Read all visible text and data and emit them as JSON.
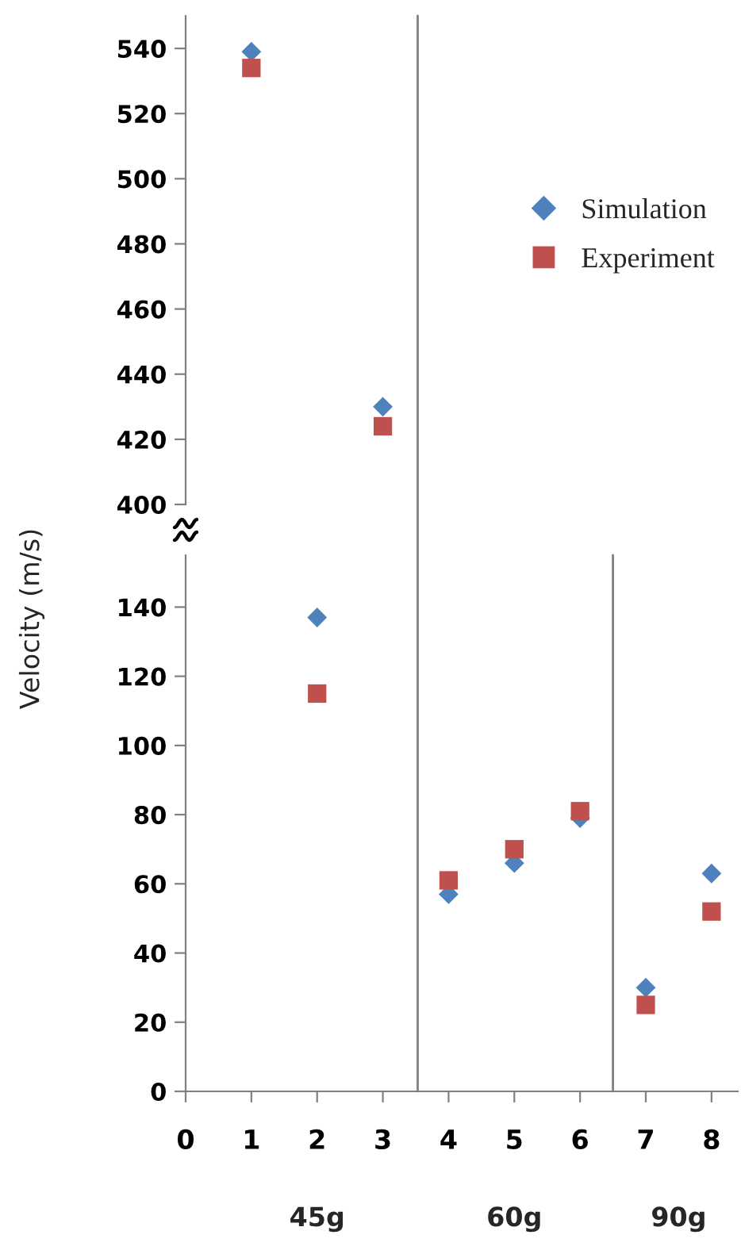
{
  "chart_data": [
    {
      "type": "scatter",
      "ylabel": "Velocity (m/s)",
      "x": [
        1,
        3
      ],
      "ylim": [
        400,
        550
      ],
      "yticks": [
        400,
        420,
        440,
        460,
        480,
        500,
        520,
        540
      ],
      "tick_labels": "y",
      "legend": "right",
      "grid": false,
      "series": [
        {
          "name": "Simulation",
          "color": "#4f81bd",
          "marker": "diamond",
          "values": [
            539,
            430
          ]
        },
        {
          "name": "Experiment",
          "color": "#c0504d",
          "marker": "square",
          "values": [
            534,
            424
          ]
        }
      ]
    },
    {
      "type": "scatter",
      "x": [
        2,
        4,
        5,
        6,
        7,
        8
      ],
      "xlim": [
        0,
        8.4
      ],
      "xticks": [
        0,
        1,
        2,
        3,
        4,
        5,
        6,
        7,
        8
      ],
      "ylim": [
        0,
        155
      ],
      "yticks": [
        0,
        20,
        40,
        60,
        80,
        100,
        120,
        140
      ],
      "grid": false,
      "series": [
        {
          "color": "#4f81bd",
          "marker": "diamond",
          "values": [
            137,
            57,
            66,
            79,
            30,
            63
          ]
        },
        {
          "color": "#c0504d",
          "marker": "square",
          "values": [
            115,
            61,
            70,
            81,
            25,
            52
          ]
        }
      ],
      "ref_lines": [
        {
          "axis": "x",
          "value": 3.53,
          "color": "#808080"
        },
        {
          "axis": "x",
          "value": 6.5,
          "color": "#808080"
        }
      ],
      "annotations": [
        "45g",
        "60g",
        "90g"
      ]
    }
  ]
}
